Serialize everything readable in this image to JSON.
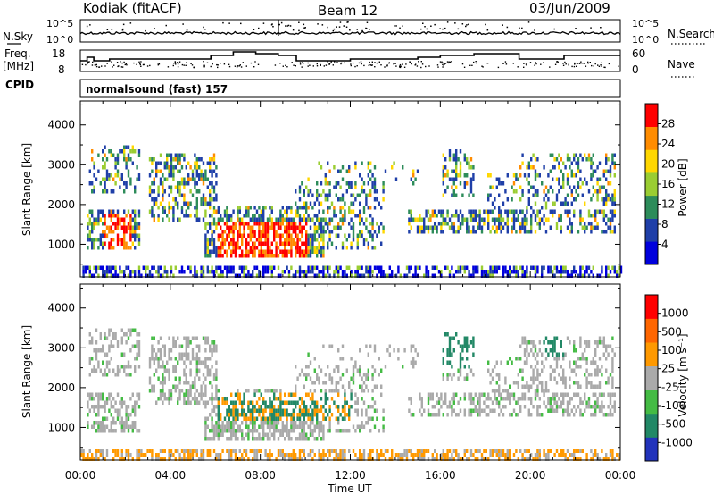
{
  "header": {
    "station": "Kodiak (fitACF)",
    "beam": "Beam 12",
    "date": "03/Jun/2009"
  },
  "noise_panel": {
    "left_label": "N.Sky",
    "right_label": "N.Search",
    "left_ticks": [
      "10^5",
      "10^0"
    ],
    "right_ticks": [
      "10^5",
      "10^0"
    ]
  },
  "freq_panel": {
    "left_label_line1": "Freq.",
    "left_label_line2": "[MHz]",
    "right_label": "Nave",
    "left_ticks": [
      "18",
      "8"
    ],
    "right_ticks": [
      "60",
      "0"
    ]
  },
  "cpid": {
    "label": "CPID",
    "value": "normalsound (fast) 157"
  },
  "chart_data": [
    {
      "type": "heatmap",
      "name": "power",
      "ylabel": "Slant Range [km]",
      "ylim": [
        180,
        4600
      ],
      "yticks": [
        "1000",
        "2000",
        "3000",
        "4000"
      ],
      "colorbar": {
        "label": "Power [dB]",
        "ticks": [
          "28",
          "24",
          "20",
          "16",
          "12",
          "8",
          "4"
        ],
        "colors": [
          "#0000dd",
          "#1f3fa8",
          "#2d8c5a",
          "#9acd32",
          "#ffd700",
          "#ff8c00",
          "#ff0000"
        ]
      }
    },
    {
      "type": "heatmap",
      "name": "velocity",
      "ylabel": "Slant Range [km]",
      "ylim": [
        180,
        4600
      ],
      "yticks": [
        "1000",
        "2000",
        "3000",
        "4000"
      ],
      "colorbar": {
        "label": "Velocity [m s⁻¹]",
        "ticks": [
          "1000",
          "500",
          "100",
          "25",
          "-25",
          "-100",
          "-500",
          "-1000"
        ],
        "colors": [
          "#2233bb",
          "#228866",
          "#44bb44",
          "#aaaaaa",
          "#ff9900",
          "#ff6600",
          "#ff0000"
        ]
      }
    }
  ],
  "xaxis": {
    "label": "Time UT",
    "ticks": [
      "00:00",
      "04:00",
      "08:00",
      "12:00",
      "16:00",
      "20:00",
      "00:00"
    ]
  }
}
